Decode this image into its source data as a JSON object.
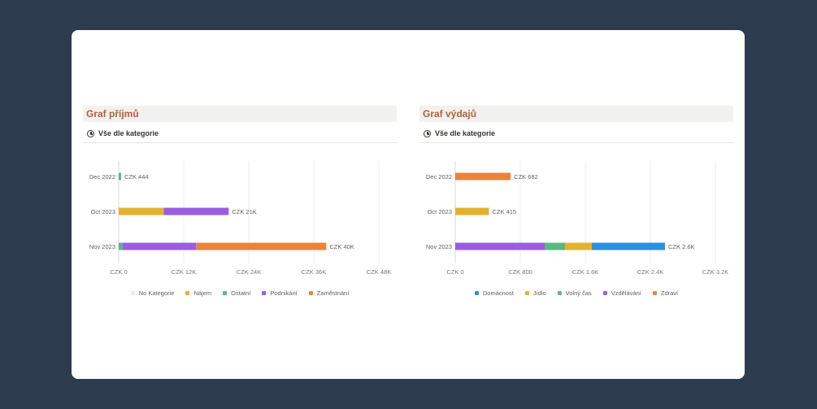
{
  "income_panel": {
    "title": "Graf příjmů",
    "view_label": "Vše dle kategorie",
    "chart_data": {
      "type": "bar",
      "orientation": "horizontal",
      "stacked": true,
      "title": "Graf příjmů",
      "categories": [
        "Dec 2022",
        "Oct 2023",
        "Nov 2023"
      ],
      "series": [
        {
          "name": "No Kategorie",
          "color": "#ebebea",
          "values": [
            0,
            0,
            0
          ]
        },
        {
          "name": "Nájem",
          "color": "#e3b230",
          "values": [
            0,
            8300,
            0
          ]
        },
        {
          "name": "Ostatní",
          "color": "#59b97f",
          "values": [
            444,
            0,
            700
          ]
        },
        {
          "name": "Podnikání",
          "color": "#9b5de0",
          "values": [
            0,
            12000,
            13600
          ]
        },
        {
          "name": "Zaměstnání",
          "color": "#e9843f",
          "values": [
            0,
            0,
            24000
          ]
        }
      ],
      "totals": [
        "CZK 444",
        "CZK 21K",
        "CZK 40K"
      ],
      "xlim": [
        0,
        48000
      ],
      "xticks": [
        0,
        12000,
        24000,
        36000,
        48000
      ],
      "xtick_labels": [
        "CZK 0",
        "CZK 12K",
        "CZK 24K",
        "CZK 36K",
        "CZK 48K"
      ],
      "legend_position": "bottom"
    }
  },
  "expense_panel": {
    "title": "Graf výdajů",
    "view_label": "Vše dle kategorie",
    "chart_data": {
      "type": "bar",
      "orientation": "horizontal",
      "stacked": true,
      "title": "Graf výdajů",
      "categories": [
        "Dec 2022",
        "Oct 2023",
        "Nov 2023"
      ],
      "series": [
        {
          "name": "Vzdělávání",
          "color": "#9b5de0",
          "values": [
            0,
            0,
            1100
          ]
        },
        {
          "name": "Volný čas",
          "color": "#59b97f",
          "values": [
            0,
            0,
            250
          ]
        },
        {
          "name": "Jídlo",
          "color": "#e3b230",
          "values": [
            0,
            415,
            330
          ]
        },
        {
          "name": "Domácnost",
          "color": "#2e8fe0",
          "values": [
            0,
            0,
            900
          ]
        },
        {
          "name": "Zdraví",
          "color": "#e9843f",
          "values": [
            682,
            0,
            0
          ]
        }
      ],
      "legend_order": [
        "Domácnost",
        "Jídlo",
        "Volný čas",
        "Vzdělávání",
        "Zdraví"
      ],
      "totals": [
        "CZK 682",
        "CZK 415",
        "CZK 2.6K"
      ],
      "xlim": [
        0,
        3200
      ],
      "xticks": [
        0,
        800,
        1600,
        2400,
        3200
      ],
      "xtick_labels": [
        "CZK 0",
        "CZK 800",
        "CZK 1.6K",
        "CZK 2.4K",
        "CZK 3.2K"
      ],
      "legend_position": "bottom"
    }
  }
}
